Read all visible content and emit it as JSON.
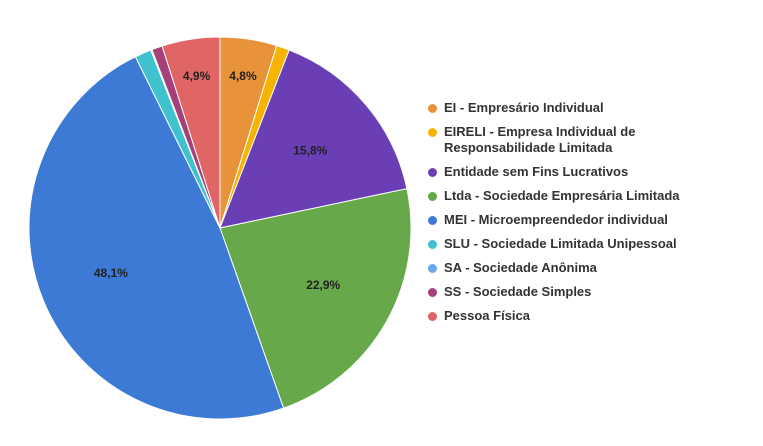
{
  "chart_data": {
    "type": "pie",
    "categories": [
      "EI - Empresário Individual",
      "EIRELI - Empresa Individual de Responsabilidade Limitada",
      "Entidade sem Fins Lucrativos",
      "Ltda - Sociedade Empresária Limitada",
      "MEI - Microempreendedor individual",
      "SLU - Sociedade Limitada Unipessoal",
      "SA - Sociedade Anônima",
      "SS - Sociedade Simples",
      "Pessoa Física"
    ],
    "values": [
      4.8,
      1.1,
      15.8,
      22.9,
      48.1,
      1.4,
      0.1,
      0.9,
      4.9
    ],
    "value_labels": [
      "4,8%",
      null,
      "15,8%",
      "22,9%",
      "48,1%",
      null,
      null,
      null,
      "4,9%"
    ],
    "colors": [
      "#e8923a",
      "#f6b400",
      "#6a3fb5",
      "#66a84a",
      "#3d7ad6",
      "#3fc1d0",
      "#6aa8e8",
      "#a4417a",
      "#e06666"
    ],
    "legend": "right"
  }
}
